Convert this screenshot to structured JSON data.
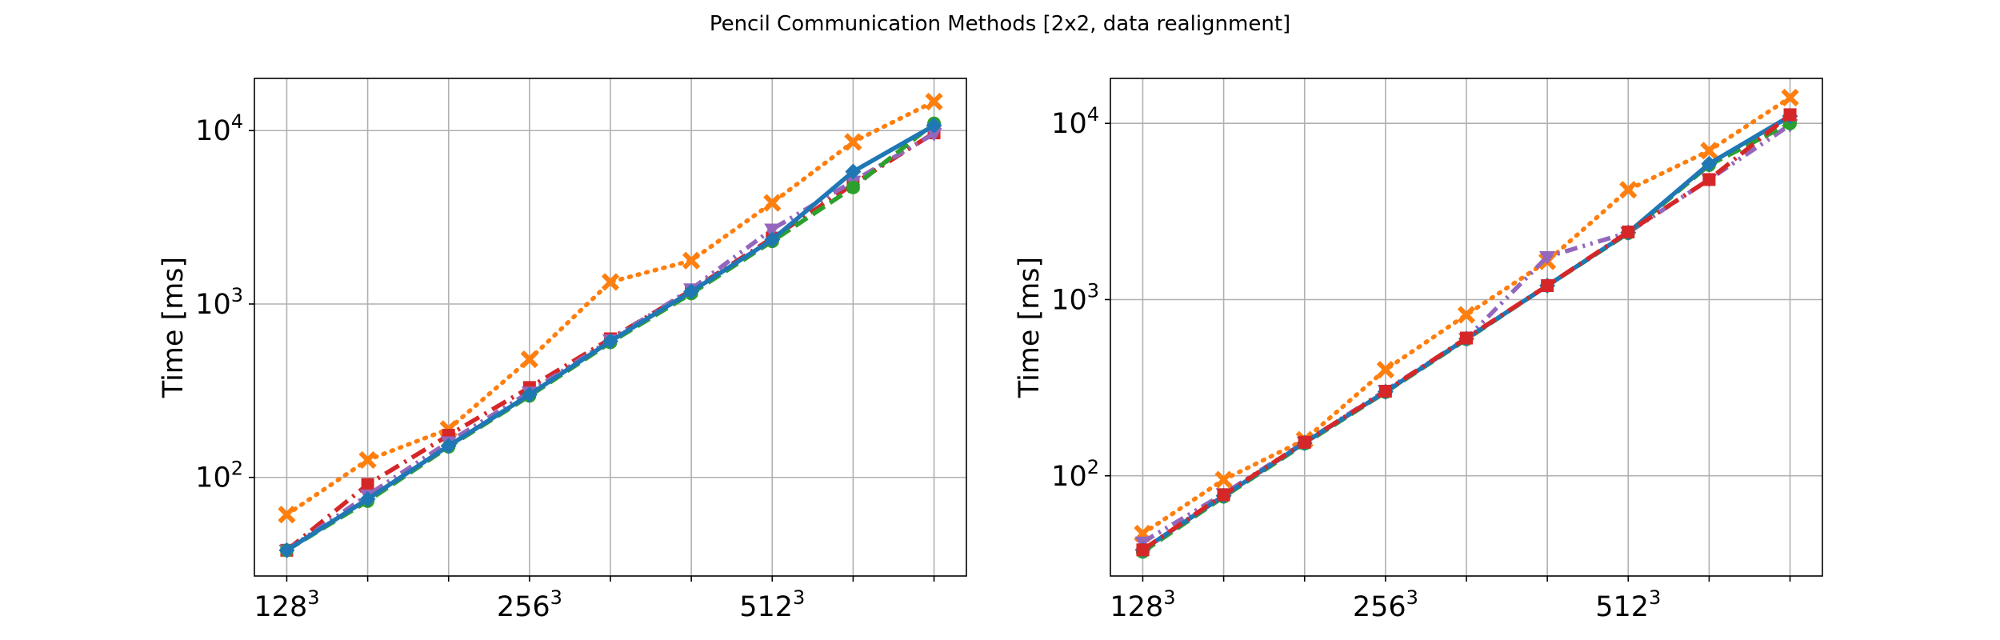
{
  "title": "Pencil Communication Methods [2x2, data realignment]",
  "chart_data": [
    {
      "type": "line",
      "ylabel": "Time [ms]",
      "yscale": "log",
      "ylim": [
        27,
        20000
      ],
      "xlim": [
        0.6,
        9.4
      ],
      "x": [
        1,
        2,
        3,
        4,
        5,
        6,
        7,
        8,
        9
      ],
      "xticks": [
        {
          "pos": 1,
          "base": "128",
          "exp": "3"
        },
        {
          "pos": 4,
          "base": "256",
          "exp": "3"
        },
        {
          "pos": 7,
          "base": "512",
          "exp": "3"
        }
      ],
      "yticks": [
        {
          "value": 100,
          "base": "10",
          "exp": "2"
        },
        {
          "value": 1000,
          "base": "10",
          "exp": "3"
        },
        {
          "value": 10000,
          "base": "10",
          "exp": "4"
        }
      ],
      "grid": true,
      "series": [
        {
          "color": "#ff7f0e",
          "dash": "dotted",
          "marker": "X",
          "values": [
            61,
            126,
            190,
            480,
            1340,
            1780,
            3830,
            8600,
            14700
          ]
        },
        {
          "color": "#d62728",
          "dash": "dashdot",
          "marker": "s",
          "values": [
            38,
            91,
            175,
            330,
            630,
            1200,
            2400,
            4900,
            9700
          ]
        },
        {
          "color": "#9467bd",
          "dash": "dashdotdot",
          "marker": "v",
          "values": [
            38,
            79,
            160,
            310,
            620,
            1220,
            2700,
            5100,
            9600
          ]
        },
        {
          "color": "#2ca02c",
          "dash": "dashed",
          "marker": "o",
          "values": [
            38,
            73,
            150,
            295,
            600,
            1150,
            2300,
            4700,
            11000
          ]
        },
        {
          "color": "#1f77b4",
          "dash": "solid",
          "marker": "D",
          "values": [
            38,
            75,
            152,
            300,
            610,
            1180,
            2350,
            5800,
            10700
          ]
        }
      ]
    },
    {
      "type": "line",
      "ylabel": "Time [ms]",
      "yscale": "log",
      "ylim": [
        27,
        18000
      ],
      "xlim": [
        0.6,
        9.4
      ],
      "x": [
        1,
        2,
        3,
        4,
        5,
        6,
        7,
        8,
        9
      ],
      "xticks": [
        {
          "pos": 1,
          "base": "128",
          "exp": "3"
        },
        {
          "pos": 4,
          "base": "256",
          "exp": "3"
        },
        {
          "pos": 7,
          "base": "512",
          "exp": "3"
        }
      ],
      "yticks": [
        {
          "value": 100,
          "base": "10",
          "exp": "2"
        },
        {
          "value": 1000,
          "base": "10",
          "exp": "3"
        },
        {
          "value": 10000,
          "base": "10",
          "exp": "4"
        }
      ],
      "grid": true,
      "series": [
        {
          "color": "#ff7f0e",
          "dash": "dotted",
          "marker": "X",
          "values": [
            47,
            95,
            160,
            400,
            820,
            1650,
            4200,
            7000,
            14000
          ]
        },
        {
          "color": "#9467bd",
          "dash": "dashdotdot",
          "marker": "v",
          "values": [
            42,
            79,
            155,
            305,
            600,
            1750,
            2400,
            4800,
            9800
          ]
        },
        {
          "color": "#2ca02c",
          "dash": "dashed",
          "marker": "o",
          "values": [
            37,
            76,
            152,
            298,
            595,
            1200,
            2380,
            5800,
            10000
          ]
        },
        {
          "color": "#1f77b4",
          "dash": "solid",
          "marker": "D",
          "values": [
            38,
            77,
            154,
            300,
            600,
            1200,
            2400,
            5900,
            11000
          ]
        },
        {
          "color": "#d62728",
          "dash": "dashdot",
          "marker": "s",
          "values": [
            38,
            78,
            155,
            302,
            605,
            1200,
            2420,
            4800,
            11200
          ]
        }
      ]
    }
  ]
}
